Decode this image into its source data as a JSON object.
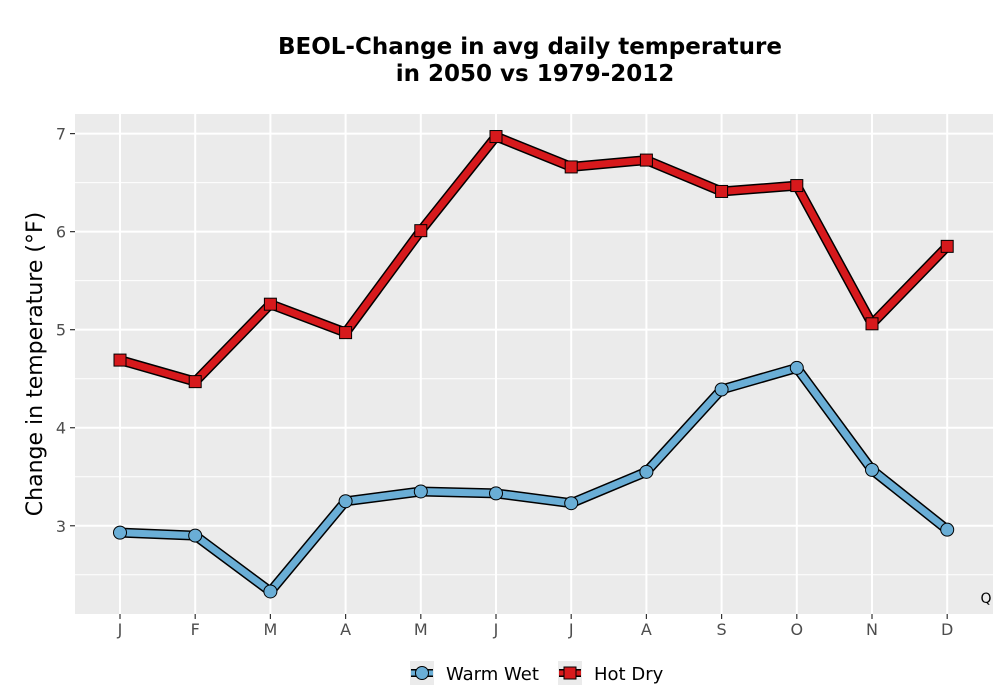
{
  "chart_data": {
    "type": "line",
    "title_line1": "BEOL-Change in avg daily temperature",
    "title_line2": "in 2050 vs 1979-2012",
    "ylabel": "Change in temperature (°F)",
    "categories": [
      "J",
      "F",
      "M",
      "A",
      "M",
      "J",
      "J",
      "A",
      "S",
      "O",
      "N",
      "D"
    ],
    "yticks": [
      3,
      4,
      5,
      6,
      7
    ],
    "ylim": [
      2.1,
      7.2
    ],
    "grid": true,
    "legend_position": "bottom",
    "corner_label": "Q",
    "series": [
      {
        "name": "Warm Wet",
        "marker": "circle",
        "color": "#6aaed6",
        "values": [
          2.93,
          2.9,
          2.33,
          3.25,
          3.35,
          3.33,
          3.23,
          3.55,
          4.39,
          4.61,
          3.57,
          2.96
        ]
      },
      {
        "name": "Hot Dry",
        "marker": "square",
        "color": "#d7191c",
        "values": [
          4.69,
          4.47,
          5.26,
          4.97,
          6.01,
          6.97,
          6.66,
          6.73,
          6.41,
          6.47,
          5.06,
          5.85
        ]
      }
    ]
  }
}
